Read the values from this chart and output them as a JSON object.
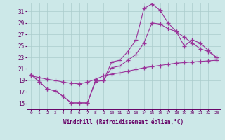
{
  "xlabel": "Windchill (Refroidissement éolien,°C)",
  "background_color": "#cce8e8",
  "grid_color": "#aacccc",
  "line_color": "#993399",
  "xlim": [
    -0.5,
    23.5
  ],
  "ylim": [
    14.0,
    32.5
  ],
  "xticks": [
    0,
    1,
    2,
    3,
    4,
    5,
    6,
    7,
    8,
    9,
    10,
    11,
    12,
    13,
    14,
    15,
    16,
    17,
    18,
    19,
    20,
    21,
    22,
    23
  ],
  "yticks": [
    15,
    17,
    19,
    21,
    23,
    25,
    27,
    29,
    31
  ],
  "line1_y": [
    20.0,
    18.8,
    17.5,
    17.2,
    16.2,
    15.1,
    15.1,
    15.1,
    19.0,
    19.0,
    22.2,
    22.5,
    24.0,
    26.0,
    31.5,
    32.3,
    31.2,
    29.0,
    27.5,
    25.0,
    26.0,
    25.5,
    24.2,
    23.0
  ],
  "line2_y": [
    20.0,
    18.8,
    17.5,
    17.2,
    16.2,
    15.1,
    15.1,
    15.1,
    18.8,
    19.0,
    21.2,
    21.5,
    22.5,
    23.5,
    25.5,
    29.0,
    28.8,
    28.0,
    27.5,
    26.5,
    25.5,
    24.5,
    24.0,
    23.0
  ],
  "line3_y": [
    19.8,
    19.5,
    19.2,
    19.0,
    18.7,
    18.5,
    18.4,
    18.7,
    19.2,
    19.8,
    20.1,
    20.3,
    20.6,
    20.9,
    21.2,
    21.4,
    21.6,
    21.8,
    22.0,
    22.1,
    22.2,
    22.3,
    22.4,
    22.5
  ]
}
